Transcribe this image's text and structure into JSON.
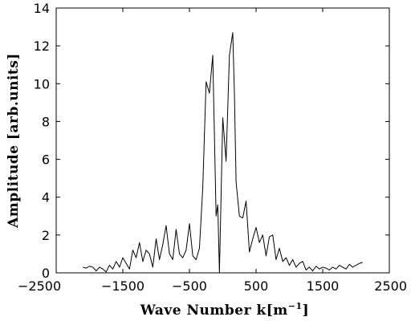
{
  "chart_data": {
    "type": "line",
    "xlabel_main": "Wave Number k[m",
    "xlabel_sup": "−1",
    "xlabel_close": "]",
    "ylabel": "Amplitude [arb.units]",
    "xlim": [
      -2500,
      2500
    ],
    "ylim": [
      0,
      14
    ],
    "x_ticks": [
      -2500,
      -1500,
      -500,
      500,
      1500,
      2500
    ],
    "x_tick_labels": [
      "−2500",
      "−1500",
      "−500",
      "500",
      "1500",
      "2500"
    ],
    "y_ticks": [
      0,
      2,
      4,
      6,
      8,
      10,
      12,
      14
    ],
    "y_tick_labels": [
      "0",
      "2",
      "4",
      "6",
      "8",
      "10",
      "12",
      "14"
    ],
    "grid": false,
    "legend": "none",
    "series": [
      {
        "x": [
          -2100,
          -2050,
          -2000,
          -1950,
          -1900,
          -1850,
          -1800,
          -1750,
          -1700,
          -1650,
          -1600,
          -1550,
          -1500,
          -1450,
          -1400,
          -1350,
          -1300,
          -1250,
          -1200,
          -1150,
          -1100,
          -1050,
          -1000,
          -950,
          -900,
          -850,
          -800,
          -750,
          -700,
          -650,
          -600,
          -550,
          -500,
          -450,
          -400,
          -350,
          -300,
          -250,
          -200,
          -150,
          -100,
          -75,
          -50,
          0,
          50,
          100,
          150,
          175,
          200,
          250,
          300,
          350,
          400,
          450,
          500,
          550,
          600,
          650,
          700,
          750,
          800,
          850,
          900,
          950,
          1000,
          1050,
          1100,
          1150,
          1200,
          1250,
          1300,
          1350,
          1400,
          1450,
          1500,
          1550,
          1600,
          1650,
          1700,
          1750,
          1800,
          1850,
          1900,
          1950,
          2000,
          2050,
          2100
        ],
        "y": [
          0.3,
          0.25,
          0.35,
          0.3,
          0.1,
          0.3,
          0.2,
          0.05,
          0.4,
          0.2,
          0.6,
          0.3,
          0.8,
          0.5,
          0.2,
          1.2,
          0.8,
          1.6,
          0.6,
          1.2,
          1.0,
          0.3,
          1.8,
          0.7,
          1.5,
          2.5,
          1.0,
          0.7,
          2.3,
          1.0,
          0.8,
          1.2,
          2.6,
          0.9,
          0.7,
          1.3,
          4.5,
          10.1,
          9.5,
          11.5,
          3.0,
          3.6,
          0.0,
          8.2,
          5.9,
          11.5,
          12.7,
          9.5,
          4.8,
          3.0,
          2.9,
          3.8,
          1.1,
          1.8,
          2.4,
          1.6,
          2.0,
          0.9,
          1.9,
          2.0,
          0.7,
          1.3,
          0.6,
          0.8,
          0.4,
          0.7,
          0.3,
          0.5,
          0.6,
          0.15,
          0.3,
          0.1,
          0.35,
          0.2,
          0.3,
          0.25,
          0.15,
          0.3,
          0.2,
          0.4,
          0.3,
          0.2,
          0.45,
          0.3,
          0.4,
          0.5,
          0.55
        ]
      }
    ]
  }
}
